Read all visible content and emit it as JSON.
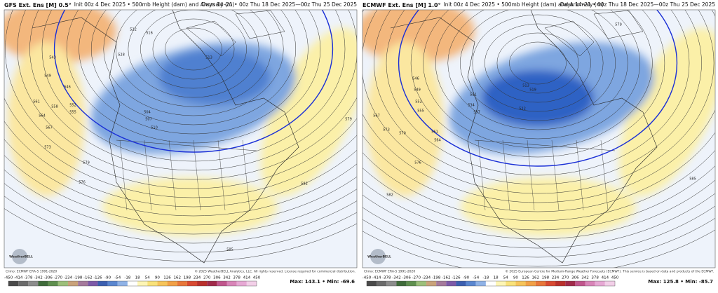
{
  "panels": [
    {
      "title": "GFS Ext. Ens [M] 0.5°",
      "init": "Init 00z 4 Dec 2025 • 500mb Height (dam) and Anomaly (m)",
      "days": "Days 14–21 • 00z Thu 18 Dec 2025—00z Thu 25 Dec 2025",
      "contour_labels": [
        522,
        516,
        528,
        543,
        549,
        546,
        552,
        555,
        561,
        558,
        564,
        567,
        573,
        579,
        576,
        582,
        585,
        504,
        507,
        510,
        513,
        579
      ],
      "climo": "Climo: ECMWF ERA-5 1991-2020",
      "copyright": "© 2025 WeatherBELL Analytics, LLC. All rights reserved. License required for commercial distribution.",
      "max_min": "Max: 143.1 • Min: -69.6",
      "logo": "WeatherBELL"
    },
    {
      "title": "ECMWF Ext. Ens [M] 1.0°",
      "init": "Init 00z 4 Dec 2025 • 500mb Height (dam) and Anomaly (m)",
      "days": "Days 14–21 • 00z Thu 18 Dec 2025—00z Thu 25 Dec 2025",
      "contour_labels": [
        546,
        549,
        552,
        555,
        567,
        573,
        570,
        576,
        561,
        564,
        513,
        519,
        522,
        531,
        534,
        537,
        582,
        585,
        579
      ],
      "climo": "Climo: ECMWF ERA-5 1991-2020",
      "copyright": "© 2025 European Centre for Medium-Range Weather Forecasts (ECMWF). This service is based on data and products of the ECMWF.",
      "max_min": "Max: 125.8 • Min: -85.7",
      "logo": "WeatherBELL"
    }
  ],
  "colorbar": {
    "ticks": [
      -450,
      -414,
      -378,
      -342,
      -306,
      -270,
      -234,
      -198,
      -162,
      -126,
      -90,
      -54,
      -18,
      18,
      54,
      90,
      126,
      162,
      198,
      234,
      270,
      306,
      342,
      378,
      414,
      450
    ],
    "colors": [
      "#4a4a4a",
      "#6b6b6b",
      "#8c8c8c",
      "#3f6b3a",
      "#5f8f4f",
      "#9cbf7a",
      "#c9a27a",
      "#a57a9c",
      "#7d5aa8",
      "#3c5fb0",
      "#5a86cf",
      "#8fb2e6",
      "#ffffff",
      "#fdf5b5",
      "#f9e27a",
      "#f6c45a",
      "#f1a046",
      "#e8773a",
      "#d84a32",
      "#b9302c",
      "#a02a4a",
      "#c0568c",
      "#d884b8",
      "#e6a8d4",
      "#f2cfe8"
    ]
  }
}
